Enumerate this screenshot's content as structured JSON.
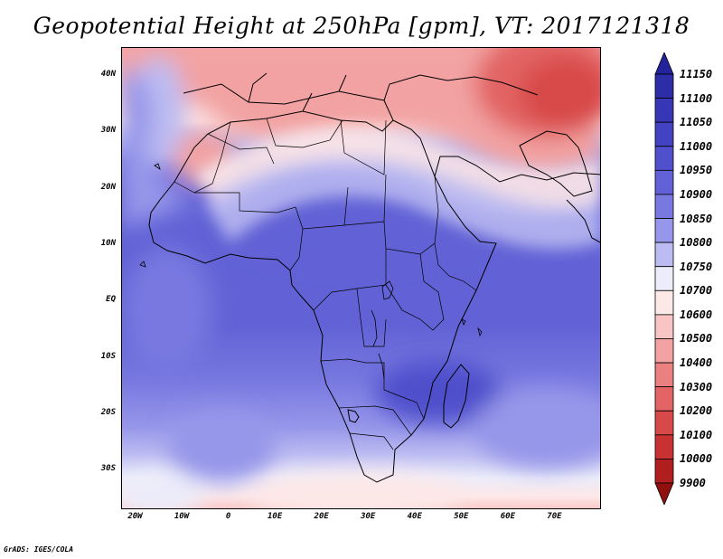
{
  "title": "Geopotential Height at 250hPa [gpm], VT: 2017121318",
  "credit": "GrADS: IGES/COLA",
  "map": {
    "lon_range": [
      -23,
      80
    ],
    "lat_range": [
      -37,
      45
    ],
    "lat_labels": [
      {
        "lat": 40,
        "text": "40N"
      },
      {
        "lat": 30,
        "text": "30N"
      },
      {
        "lat": 20,
        "text": "20N"
      },
      {
        "lat": 10,
        "text": "10N"
      },
      {
        "lat": 0,
        "text": "EQ"
      },
      {
        "lat": -10,
        "text": "10S"
      },
      {
        "lat": -20,
        "text": "20S"
      },
      {
        "lat": -30,
        "text": "30S"
      }
    ],
    "lon_labels": [
      {
        "lon": -20,
        "text": "20W"
      },
      {
        "lon": -10,
        "text": "10W"
      },
      {
        "lon": 0,
        "text": "0"
      },
      {
        "lon": 10,
        "text": "10E"
      },
      {
        "lon": 20,
        "text": "20E"
      },
      {
        "lon": 30,
        "text": "30E"
      },
      {
        "lon": 40,
        "text": "40E"
      },
      {
        "lon": 50,
        "text": "50E"
      },
      {
        "lon": 60,
        "text": "60E"
      },
      {
        "lon": 70,
        "text": "70E"
      }
    ]
  },
  "colorbar": {
    "labels": [
      "11150",
      "11100",
      "11050",
      "11000",
      "10950",
      "10900",
      "10850",
      "10800",
      "10750",
      "10700",
      "10600",
      "10500",
      "10400",
      "10300",
      "10200",
      "10100",
      "10000",
      "9900"
    ],
    "colors": [
      "#23239b",
      "#2d2da8",
      "#3737b6",
      "#4242c2",
      "#5050cc",
      "#6262d6",
      "#7878e0",
      "#9696ea",
      "#bcbcf2",
      "#ececfa",
      "#fde8e8",
      "#f8c4c4",
      "#f2a2a2",
      "#ea8080",
      "#e26464",
      "#d84a4a",
      "#c83232",
      "#b01e1e",
      "#901010"
    ]
  }
}
